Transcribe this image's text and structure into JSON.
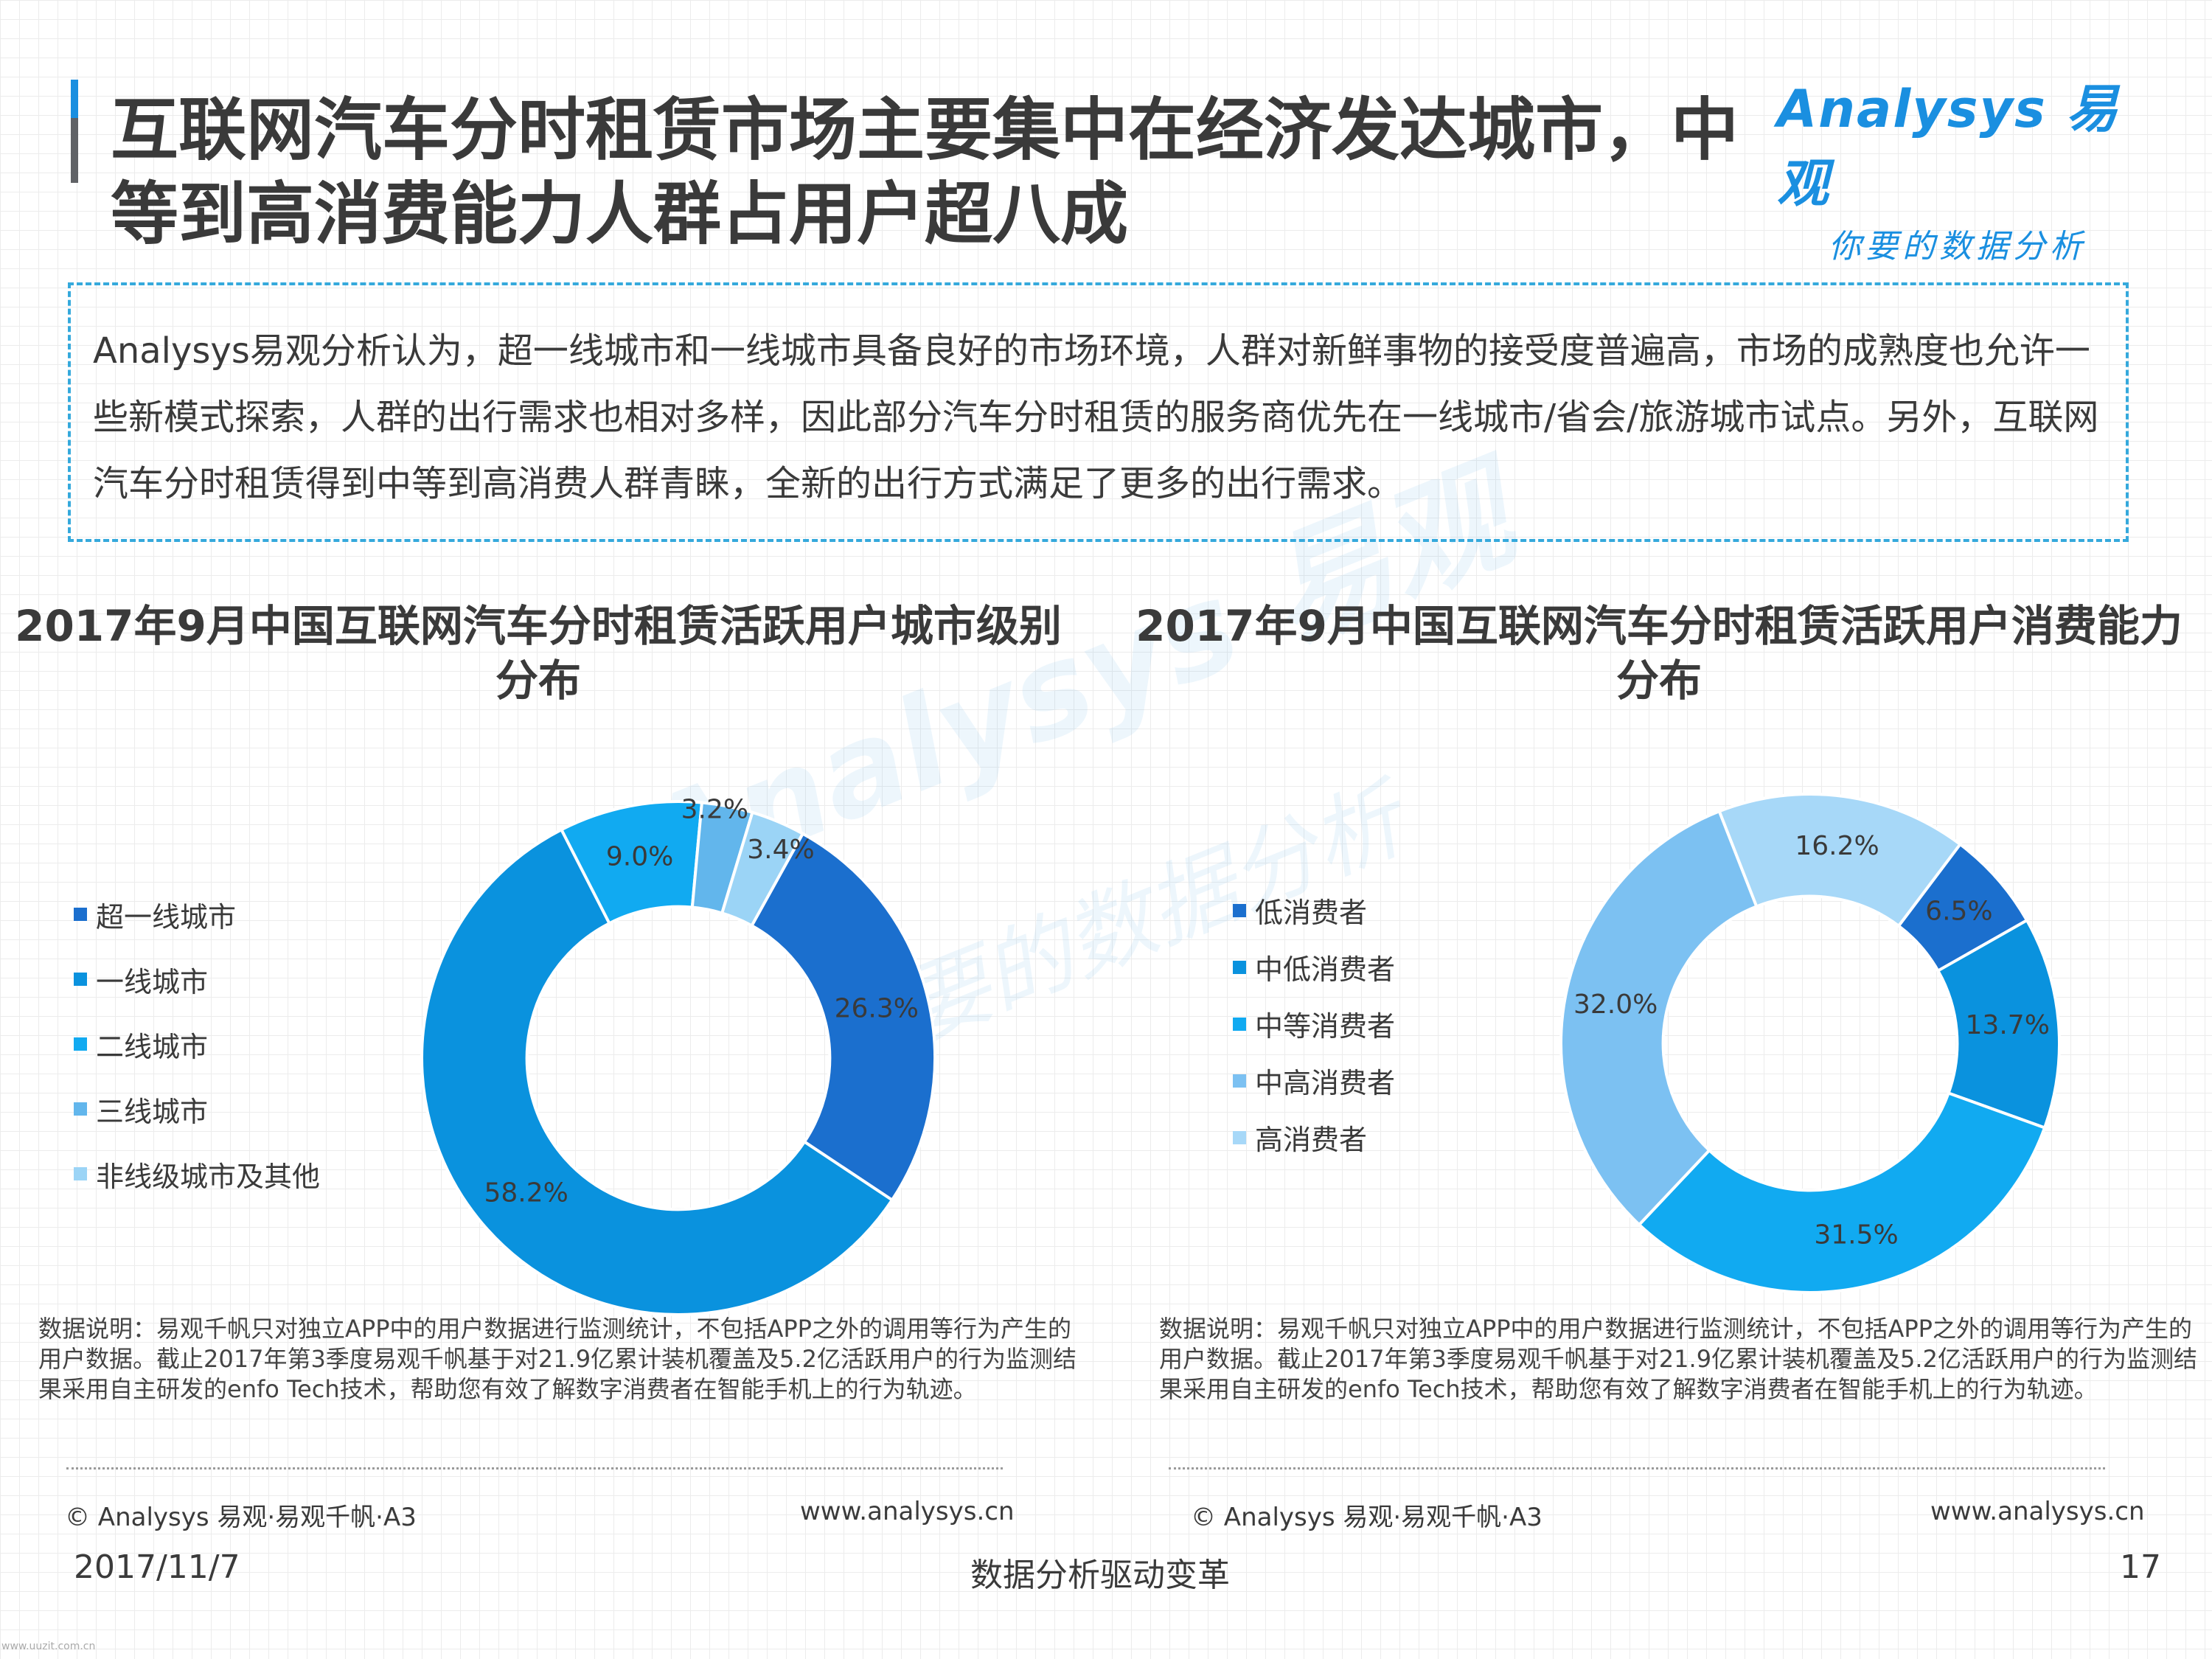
{
  "title": "互联网汽车分时租赁市场主要集中在经济发达城市，中等到高消费能力人群占用户超八成",
  "logo": {
    "brand": "Analysys 易观",
    "tagline": "你要的数据分析"
  },
  "watermark": {
    "brand": "Analysys 易观",
    "tagline": "你要的数据分析"
  },
  "summary": "Analysys易观分析认为，超一线城市和一线城市具备良好的市场环境，人群对新鲜事物的接受度普遍高，市场的成熟度也允许一些新模式探索，人群的出行需求也相对多样，因此部分汽车分时租赁的服务商优先在一线城市/省会/旅游城市试点。另外，互联网汽车分时租赁得到中等到高消费人群青睐，全新的出行方式满足了更多的出行需求。",
  "chart_data": [
    {
      "type": "pie",
      "donut": true,
      "title": "2017年9月中国互联网汽车分时租赁活跃用户城市级别分布",
      "categories": [
        "超一线城市",
        "一线城市",
        "二线城市",
        "三线城市",
        "非线级城市及其他"
      ],
      "values": [
        26.3,
        58.2,
        9.0,
        3.2,
        3.4
      ],
      "value_labels": [
        "26.3%",
        "58.2%",
        "9.0%",
        "3.2%",
        "3.4%"
      ],
      "colors": [
        "#1b6fce",
        "#0a92de",
        "#11aaf1",
        "#62b6ec",
        "#9bd4f6"
      ],
      "start_angle_deg": 29,
      "legend": "left"
    },
    {
      "type": "pie",
      "donut": true,
      "title": "2017年9月中国互联网汽车分时租赁活跃用户消费能力分布",
      "categories": [
        "低消费者",
        "中低消费者",
        "中等消费者",
        "中高消费者",
        "高消费者"
      ],
      "values": [
        6.5,
        13.7,
        31.5,
        32.0,
        16.2
      ],
      "value_labels": [
        "6.5%",
        "13.7%",
        "31.5%",
        "32.0%",
        "16.2%"
      ],
      "colors": [
        "#1b6fce",
        "#0a92de",
        "#11aaf1",
        "#7cc1f2",
        "#a7d8f8"
      ],
      "start_angle_deg": 37,
      "legend": "left"
    }
  ],
  "note": "数据说明：易观千帆只对独立APP中的用户数据进行监测统计，不包括APP之外的调用等行为产生的用户数据。截止2017年第3季度易观千帆基于对21.9亿累计装机覆盖及5.2亿活跃用户的行为监测结果采用自主研发的enfo Tech技术，帮助您有效了解数字消费者在智能手机上的行为轨迹。",
  "source": "© Analysys 易观·易观千帆·A3",
  "website": "www.analysys.cn",
  "footer": {
    "date": "2017/11/7",
    "slogan": "数据分析驱动变革",
    "page": "17"
  },
  "corner_mark": "www.uuzit.com.cn"
}
